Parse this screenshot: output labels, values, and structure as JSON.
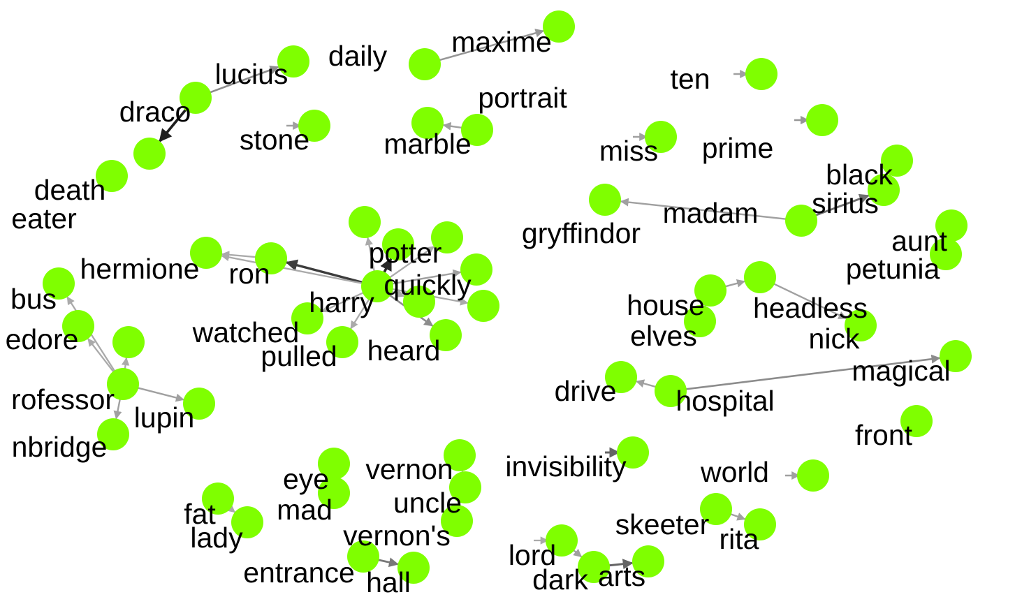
{
  "colors": {
    "node": "#7fff00",
    "edge_dark": "#000000",
    "background": "#ffffff"
  },
  "nodes": [
    {
      "id": "n_daily",
      "label": "daily"
    },
    {
      "id": "n_maxime",
      "label": "maxime"
    },
    {
      "id": "n_lucius",
      "label": "lucius"
    },
    {
      "id": "n_draco",
      "label": "draco"
    },
    {
      "id": "n_stone",
      "label": "stone"
    },
    {
      "id": "n_portrait",
      "label": "portrait"
    },
    {
      "id": "n_marble",
      "label": "marble"
    },
    {
      "id": "n_ten",
      "label": "ten"
    },
    {
      "id": "n_miss",
      "label": "miss"
    },
    {
      "id": "n_prime",
      "label": "prime"
    },
    {
      "id": "n_death",
      "label": "death"
    },
    {
      "id": "n_eater",
      "label": "eater"
    },
    {
      "id": "n_black",
      "label": "black"
    },
    {
      "id": "n_sirius",
      "label": "sirius"
    },
    {
      "id": "n_madam",
      "label": "madam"
    },
    {
      "id": "n_gryffindor",
      "label": "gryffindor"
    },
    {
      "id": "n_aunt",
      "label": "aunt"
    },
    {
      "id": "n_petunia",
      "label": "petunia"
    },
    {
      "id": "n_potter",
      "label": "potter"
    },
    {
      "id": "n_quickly",
      "label": "quickly"
    },
    {
      "id": "n_hermione",
      "label": "hermione"
    },
    {
      "id": "n_ron",
      "label": "ron"
    },
    {
      "id": "n_harry",
      "label": "harry"
    },
    {
      "id": "n_watched",
      "label": "watched"
    },
    {
      "id": "n_pulled",
      "label": "pulled"
    },
    {
      "id": "n_heard",
      "label": "heard"
    },
    {
      "id": "n_bus",
      "label": "bus"
    },
    {
      "id": "n_dumbledore",
      "label": "edore"
    },
    {
      "id": "n_professor",
      "label": "rofessor"
    },
    {
      "id": "n_lupin",
      "label": "lupin"
    },
    {
      "id": "n_umbridge",
      "label": "nbridge"
    },
    {
      "id": "n_house",
      "label": "house"
    },
    {
      "id": "n_elves",
      "label": "elves"
    },
    {
      "id": "n_headless",
      "label": "headless"
    },
    {
      "id": "n_nick",
      "label": "nick"
    },
    {
      "id": "n_magical",
      "label": "magical"
    },
    {
      "id": "n_drive",
      "label": "drive"
    },
    {
      "id": "n_hospital",
      "label": "hospital"
    },
    {
      "id": "n_front",
      "label": "front"
    },
    {
      "id": "n_invisibility",
      "label": "invisibility"
    },
    {
      "id": "n_world",
      "label": "world"
    },
    {
      "id": "n_eye",
      "label": "eye"
    },
    {
      "id": "n_mad",
      "label": "mad"
    },
    {
      "id": "n_vernon",
      "label": "vernon"
    },
    {
      "id": "n_uncle",
      "label": "uncle"
    },
    {
      "id": "n_vernons",
      "label": "vernon's"
    },
    {
      "id": "n_fat",
      "label": "fat"
    },
    {
      "id": "n_lady",
      "label": "lady"
    },
    {
      "id": "n_skeeter",
      "label": "skeeter"
    },
    {
      "id": "n_rita",
      "label": "rita"
    },
    {
      "id": "n_lord",
      "label": "lord"
    },
    {
      "id": "n_dark",
      "label": "dark"
    },
    {
      "id": "n_arts",
      "label": "arts"
    },
    {
      "id": "n_entrance",
      "label": "entrance"
    },
    {
      "id": "n_hall",
      "label": "hall"
    },
    {
      "id": "n_potter_x1",
      "label": ""
    },
    {
      "id": "n_potter_x2",
      "label": ""
    },
    {
      "id": "n_quickly_x1",
      "label": ""
    },
    {
      "id": "n_quickly_x2",
      "label": ""
    },
    {
      "id": "n_prof_x1",
      "label": ""
    }
  ],
  "edges": [
    {
      "from": "n_daily",
      "to": "n_maxime",
      "weight": 0.25
    },
    {
      "from": "n_draco",
      "to": "n_lucius",
      "weight": 0.3
    },
    {
      "from": "n_draco",
      "to": "n_death",
      "weight": 0.85
    },
    {
      "from": "n_stone",
      "to": "n_stone",
      "weight": 0.2
    },
    {
      "from": "n_portrait",
      "to": "n_marble",
      "weight": 0.2
    },
    {
      "from": "n_ten",
      "to": "n_ten",
      "weight": 0.2
    },
    {
      "from": "n_miss",
      "to": "n_miss",
      "weight": 0.2
    },
    {
      "from": "n_prime",
      "to": "n_prime",
      "weight": 0.25
    },
    {
      "from": "n_black",
      "to": "n_sirius",
      "weight": 0.2
    },
    {
      "from": "n_madam",
      "to": "n_gryffindor",
      "weight": 0.2
    },
    {
      "from": "n_madam",
      "to": "n_sirius",
      "weight": 0.45
    },
    {
      "from": "n_aunt",
      "to": "n_petunia",
      "weight": 0.2
    },
    {
      "from": "n_harry",
      "to": "n_ron",
      "weight": 0.7
    },
    {
      "from": "n_harry",
      "to": "n_hermione",
      "weight": 0.15
    },
    {
      "from": "n_harry",
      "to": "n_potter",
      "weight": 0.8
    },
    {
      "from": "n_harry",
      "to": "n_quickly",
      "weight": 0.2
    },
    {
      "from": "n_harry",
      "to": "n_watched",
      "weight": 0.15
    },
    {
      "from": "n_harry",
      "to": "n_pulled",
      "weight": 0.15
    },
    {
      "from": "n_harry",
      "to": "n_heard",
      "weight": 0.3
    },
    {
      "from": "n_harry",
      "to": "n_potter_x1",
      "weight": 0.15
    },
    {
      "from": "n_harry",
      "to": "n_potter_x2",
      "weight": 0.15
    },
    {
      "from": "n_harry",
      "to": "n_quickly_x1",
      "weight": 0.15
    },
    {
      "from": "n_harry",
      "to": "n_quickly_x2",
      "weight": 0.15
    },
    {
      "from": "n_ron",
      "to": "n_hermione",
      "weight": 0.15
    },
    {
      "from": "n_professor",
      "to": "n_dumbledore",
      "weight": 0.15
    },
    {
      "from": "n_professor",
      "to": "n_bus",
      "weight": 0.15
    },
    {
      "from": "n_professor",
      "to": "n_lupin",
      "weight": 0.2
    },
    {
      "from": "n_professor",
      "to": "n_umbridge",
      "weight": 0.2
    },
    {
      "from": "n_professor",
      "to": "n_prof_x1",
      "weight": 0.15
    },
    {
      "from": "n_house",
      "to": "n_elves",
      "weight": 0.2
    },
    {
      "from": "n_house",
      "to": "n_headless",
      "weight": 0.2
    },
    {
      "from": "n_headless",
      "to": "n_nick",
      "weight": 0.2
    },
    {
      "from": "n_hospital",
      "to": "n_drive",
      "weight": 0.2
    },
    {
      "from": "n_hospital",
      "to": "n_magical",
      "weight": 0.3
    },
    {
      "from": "n_invisibility",
      "to": "n_invisibility",
      "weight": 0.5
    },
    {
      "from": "n_world",
      "to": "n_world",
      "weight": 0.2
    },
    {
      "from": "n_rita",
      "to": "n_skeeter",
      "weight": 0.2
    },
    {
      "from": "n_lord",
      "to": "n_dark",
      "weight": 0.2
    },
    {
      "from": "n_dark",
      "to": "n_arts",
      "weight": 0.5
    },
    {
      "from": "n_lord",
      "to": "n_lord",
      "weight": 0.15
    },
    {
      "from": "n_entrance",
      "to": "n_hall",
      "weight": 0.4
    },
    {
      "from": "n_fat",
      "to": "n_lady",
      "weight": 0.15
    },
    {
      "from": "n_eye",
      "to": "n_mad",
      "weight": 0.15
    },
    {
      "from": "n_vernon",
      "to": "n_uncle",
      "weight": 0.15
    }
  ]
}
